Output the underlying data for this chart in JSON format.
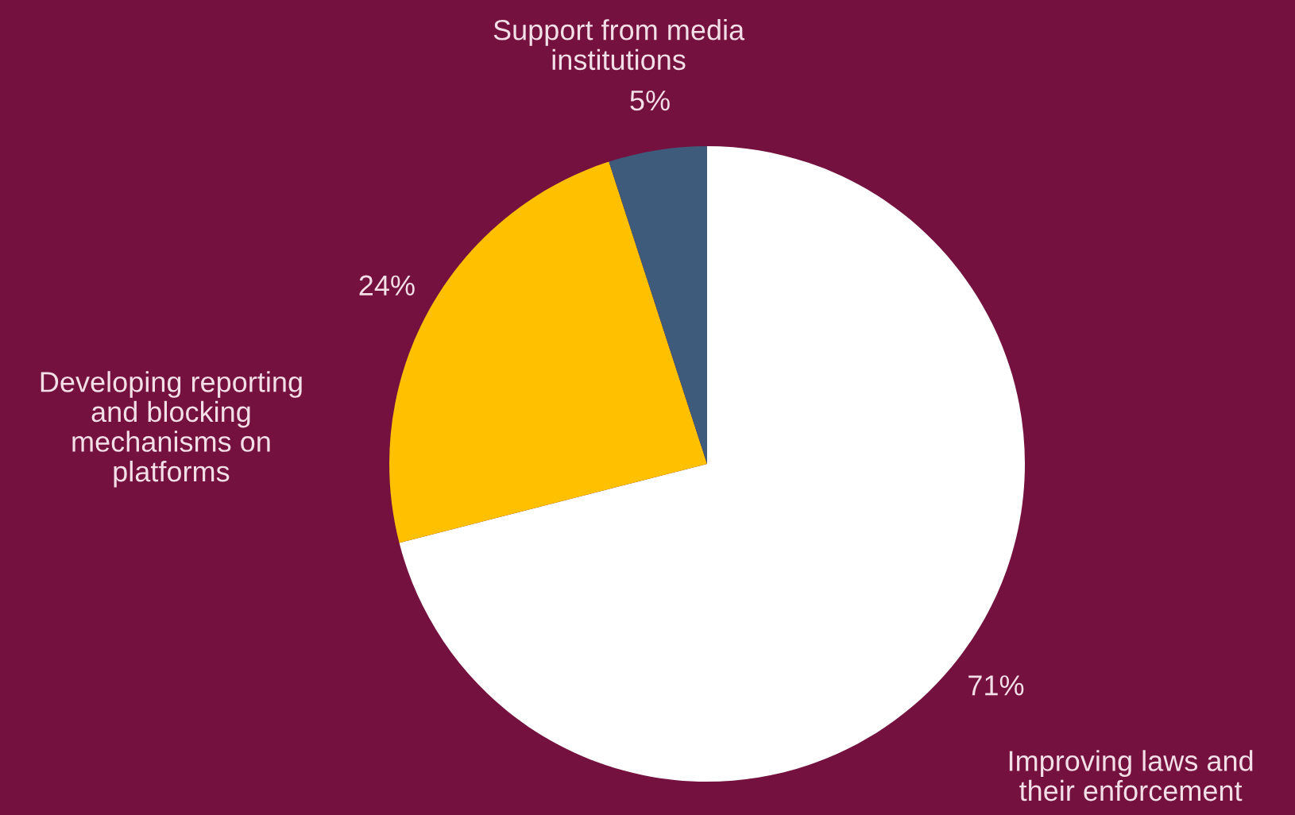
{
  "chart_data": {
    "type": "pie",
    "categories": [
      "Improving laws and\ntheir enforcement",
      "Developing reporting\nand blocking\nmechanisms on\nplatforms",
      "Support from media\ninstitutions"
    ],
    "values": [
      71,
      24,
      5
    ],
    "colors": [
      "#ffffff",
      "#ffc000",
      "#3f5b7b"
    ],
    "value_labels": [
      "71%",
      "24%",
      "5%"
    ]
  }
}
